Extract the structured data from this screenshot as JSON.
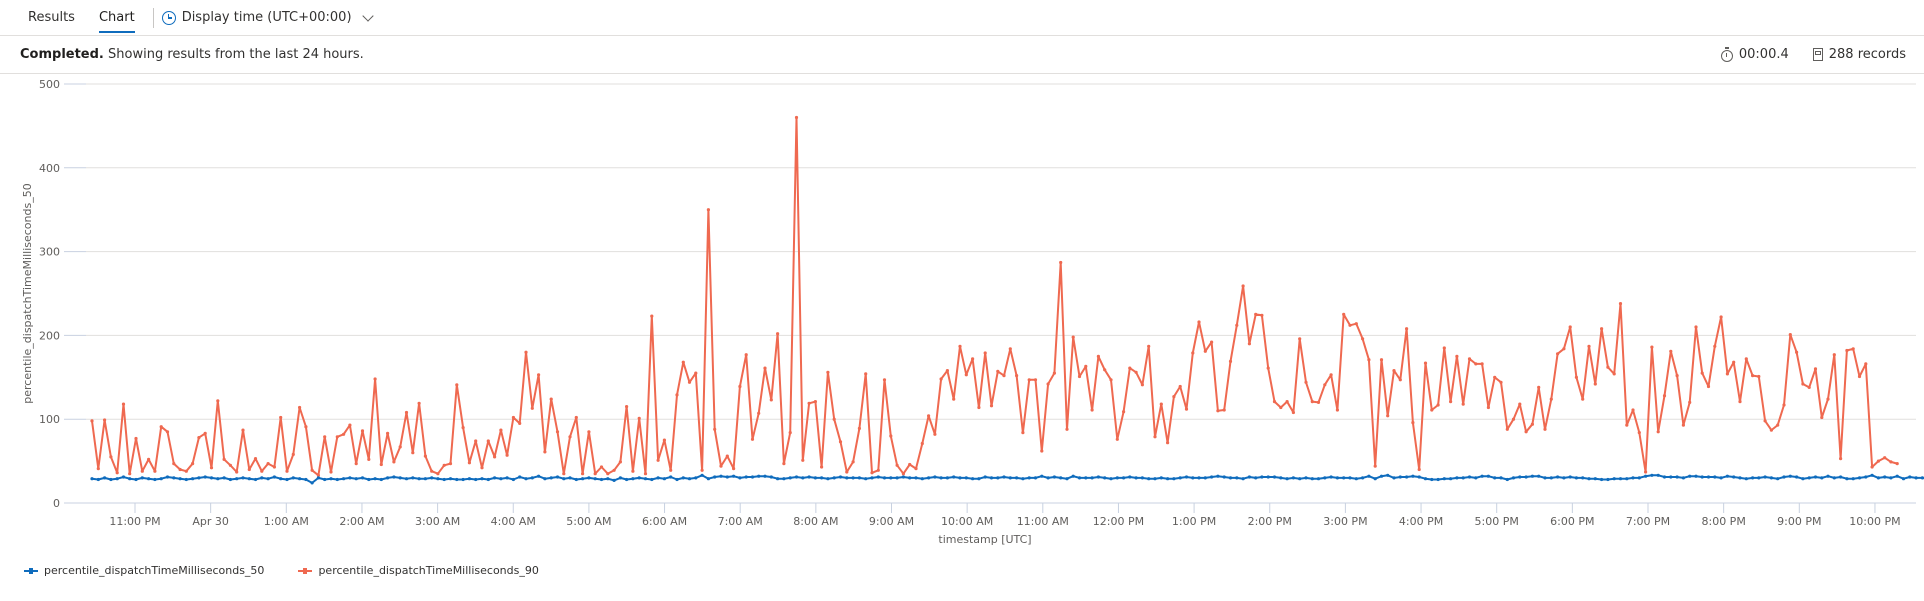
{
  "tabs": [
    {
      "label": "Results",
      "active": false
    },
    {
      "label": "Chart",
      "active": true
    }
  ],
  "time_picker": {
    "label": "Display time (UTC+00:00)",
    "icon": "clock-icon"
  },
  "status": {
    "state": "Completed.",
    "message": "Showing results from the last 24 hours.",
    "duration": "00:00.4",
    "records": "288 records"
  },
  "colors": {
    "series_50": "#0f6cbd",
    "series_90": "#ef6950",
    "grid": "#e1dfdd",
    "axis": "#c8d1e0"
  },
  "chart_data": {
    "type": "line",
    "title": "",
    "xlabel": "timestamp [UTC]",
    "ylabel": "percentile_dispatchTimeMilliseconds_50",
    "ylim": [
      0,
      500
    ],
    "yticks": [
      0,
      100,
      200,
      300,
      400,
      500
    ],
    "xticks": [
      "11:00 PM",
      "Apr 30",
      "1:00 AM",
      "2:00 AM",
      "3:00 AM",
      "4:00 AM",
      "5:00 AM",
      "6:00 AM",
      "7:00 AM",
      "8:00 AM",
      "9:00 AM",
      "10:00 AM",
      "11:00 AM",
      "12:00 PM",
      "1:00 PM",
      "2:00 PM",
      "3:00 PM",
      "4:00 PM",
      "5:00 PM",
      "6:00 PM",
      "7:00 PM",
      "8:00 PM",
      "9:00 PM",
      "10:00 PM"
    ],
    "x_interval": "5 minutes",
    "points_per_series": 288,
    "grid": true,
    "legend_position": "bottom-left",
    "series": [
      {
        "name": "percentile_dispatchTimeMilliseconds_50",
        "color": "#0f6cbd",
        "values": [
          29,
          28,
          30,
          28,
          29,
          31,
          29,
          28,
          30,
          29,
          28,
          29,
          31,
          30,
          29,
          28,
          29,
          30,
          31,
          30,
          29,
          30,
          28,
          29,
          30,
          29,
          28,
          30,
          29,
          31,
          29,
          28,
          30,
          29,
          28,
          24,
          30,
          28,
          29,
          28,
          29,
          30,
          29,
          30,
          28,
          29,
          28,
          30,
          31,
          30,
          29,
          30,
          29,
          29,
          30,
          29,
          28,
          29,
          28,
          28,
          29,
          28,
          29,
          28,
          30,
          29,
          30,
          28,
          31,
          29,
          30,
          32,
          29,
          30,
          31,
          29,
          30,
          28,
          29,
          30,
          29,
          28,
          29,
          27,
          30,
          28,
          29,
          30,
          29,
          28,
          30,
          29,
          31,
          28,
          30,
          29,
          30,
          33,
          29,
          31,
          32,
          31,
          32,
          30,
          31,
          31,
          32,
          32,
          31,
          29,
          29,
          30,
          31,
          30,
          31,
          30,
          30,
          29,
          30,
          31,
          30,
          30,
          30,
          29,
          30,
          31,
          30,
          30,
          30,
          31,
          30,
          30,
          29,
          30,
          31,
          30,
          30,
          31,
          30,
          30,
          29,
          29,
          31,
          30,
          30,
          31,
          30,
          30,
          29,
          30,
          30,
          32,
          30,
          31,
          30,
          29,
          32,
          30,
          30,
          30,
          31,
          30,
          29,
          30,
          30,
          31,
          30,
          30,
          29,
          29,
          30,
          29,
          29,
          30,
          31,
          30,
          30,
          30,
          31,
          32,
          31,
          30,
          30,
          29,
          31,
          30,
          31,
          31,
          31,
          30,
          29,
          30,
          29,
          30,
          29,
          29,
          30,
          31,
          30,
          30,
          30,
          29,
          30,
          32,
          29,
          32,
          33,
          30,
          31,
          31,
          32,
          31,
          29,
          28,
          28,
          29,
          29,
          30,
          30,
          31,
          30,
          32,
          32,
          30,
          30,
          28,
          30,
          31,
          31,
          32,
          32,
          30,
          30,
          31,
          30,
          31,
          30,
          30,
          29,
          29,
          28,
          28,
          29,
          29,
          29,
          30,
          30,
          32,
          33,
          33,
          31,
          31,
          31,
          30,
          32,
          32,
          31,
          31,
          31,
          30,
          32,
          31,
          30,
          29,
          30,
          30,
          31,
          30,
          29,
          31,
          32,
          31,
          29,
          30,
          31,
          30,
          32,
          30,
          31,
          29,
          29,
          30,
          31,
          33,
          30,
          31,
          30,
          32,
          29,
          31,
          30,
          30,
          29,
          29,
          31,
          30,
          31,
          33,
          31,
          29,
          30,
          30
        ]
      },
      {
        "name": "percentile_dispatchTimeMilliseconds_90",
        "color": "#ef6950",
        "values": [
          98,
          41,
          99,
          55,
          36,
          118,
          35,
          77,
          38,
          52,
          38,
          91,
          85,
          47,
          40,
          38,
          47,
          78,
          83,
          42,
          122,
          52,
          45,
          37,
          87,
          40,
          53,
          38,
          47,
          43,
          102,
          38,
          58,
          114,
          91,
          39,
          33,
          79,
          37,
          79,
          82,
          93,
          47,
          86,
          52,
          148,
          46,
          83,
          49,
          67,
          108,
          60,
          119,
          56,
          38,
          35,
          45,
          47,
          141,
          90,
          48,
          74,
          42,
          74,
          55,
          87,
          57,
          102,
          95,
          180,
          113,
          153,
          61,
          124,
          85,
          35,
          79,
          102,
          35,
          85,
          35,
          43,
          35,
          39,
          49,
          115,
          38,
          101,
          35,
          223,
          51,
          75,
          39,
          129,
          168,
          144,
          155,
          39,
          350,
          88,
          44,
          56,
          41,
          139,
          177,
          76,
          107,
          161,
          123,
          202,
          47,
          84,
          460,
          51,
          119,
          121,
          43,
          156,
          100,
          73,
          37,
          49,
          89,
          154,
          36,
          39,
          147,
          80,
          45,
          35,
          46,
          41,
          71,
          104,
          82,
          148,
          158,
          124,
          187,
          153,
          172,
          114,
          179,
          116,
          157,
          152,
          184,
          152,
          84,
          147,
          147,
          62,
          142,
          155,
          287,
          88,
          198,
          151,
          163,
          111,
          175,
          159,
          147,
          76,
          109,
          161,
          156,
          141,
          187,
          79,
          118,
          72,
          127,
          139,
          112,
          179,
          216,
          181,
          192,
          110,
          111,
          169,
          212,
          259,
          190,
          225,
          224,
          161,
          121,
          114,
          121,
          108,
          196,
          144,
          121,
          120,
          141,
          153,
          111,
          225,
          212,
          214,
          196,
          171,
          44,
          171,
          104,
          158,
          147,
          208,
          96,
          40,
          167,
          111,
          117,
          185,
          121,
          175,
          118,
          172,
          166,
          166,
          114,
          150,
          144,
          88,
          100,
          118,
          85,
          94,
          138,
          88,
          124,
          178,
          184,
          210,
          150,
          124,
          187,
          142,
          208,
          162,
          154,
          238,
          93,
          111,
          84,
          37,
          186,
          85,
          128,
          181,
          152,
          93,
          120,
          210,
          155,
          139,
          187,
          222,
          154,
          168,
          121,
          172,
          152,
          151,
          98,
          87,
          93,
          117,
          201,
          180,
          142,
          138,
          160,
          102,
          124,
          177,
          53,
          182,
          184,
          151,
          166,
          43,
          50,
          54,
          49,
          47
        ]
      }
    ]
  },
  "legend": [
    {
      "label": "percentile_dispatchTimeMilliseconds_50",
      "color": "#0f6cbd"
    },
    {
      "label": "percentile_dispatchTimeMilliseconds_90",
      "color": "#ef6950"
    }
  ]
}
